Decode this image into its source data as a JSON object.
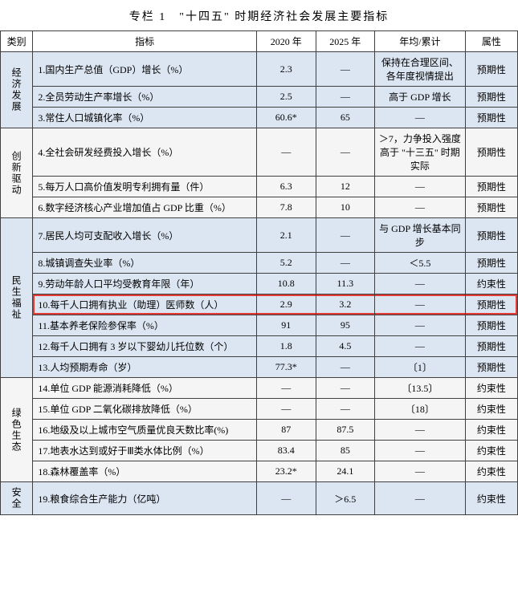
{
  "title": "专栏 1　\"十四五\" 时期经济社会发展主要指标",
  "columns": {
    "category": "类别",
    "indicator": "指标",
    "y2020": "2020 年",
    "y2025": "2025 年",
    "avg": "年均/累计",
    "attr": "属性"
  },
  "highlight_row_index": 9,
  "highlight_color": "#e53935",
  "categories": [
    {
      "name": "经济发展",
      "bg": "#dce6f2",
      "rows": [
        {
          "ind": "1.国内生产总值（GDP）增长（%）",
          "y0": "2.3",
          "y1": "—",
          "avg": "保持在合理区间、各年度视情提出",
          "attr": "预期性"
        },
        {
          "ind": "2.全员劳动生产率增长（%）",
          "y0": "2.5",
          "y1": "—",
          "avg": "高于 GDP 增长",
          "attr": "预期性"
        },
        {
          "ind": "3.常住人口城镇化率（%）",
          "y0": "60.6*",
          "y1": "65",
          "avg": "—",
          "attr": "预期性"
        }
      ]
    },
    {
      "name": "创新驱动",
      "bg": "#f5f5f5",
      "rows": [
        {
          "ind": "4.全社会研发经费投入增长（%）",
          "y0": "—",
          "y1": "—",
          "avg": "＞7，力争投入强度高于 \"十三五\" 时期实际",
          "attr": "预期性"
        },
        {
          "ind": "5.每万人口高价值发明专利拥有量（件）",
          "y0": "6.3",
          "y1": "12",
          "avg": "—",
          "attr": "预期性"
        },
        {
          "ind": "6.数字经济核心产业增加值占 GDP 比重（%）",
          "y0": "7.8",
          "y1": "10",
          "avg": "—",
          "attr": "预期性"
        }
      ]
    },
    {
      "name": "民生福祉",
      "bg": "#dce6f2",
      "rows": [
        {
          "ind": "7.居民人均可支配收入增长（%）",
          "y0": "2.1",
          "y1": "—",
          "avg": "与 GDP 增长基本同步",
          "attr": "预期性"
        },
        {
          "ind": "8.城镇调查失业率（%）",
          "y0": "5.2",
          "y1": "—",
          "avg": "＜5.5",
          "attr": "预期性"
        },
        {
          "ind": "9.劳动年龄人口平均受教育年限（年）",
          "y0": "10.8",
          "y1": "11.3",
          "avg": "—",
          "attr": "约束性"
        },
        {
          "ind": "10.每千人口拥有执业（助理）医师数（人）",
          "y0": "2.9",
          "y1": "3.2",
          "avg": "—",
          "attr": "预期性"
        },
        {
          "ind": "11.基本养老保险参保率（%）",
          "y0": "91",
          "y1": "95",
          "avg": "—",
          "attr": "预期性"
        },
        {
          "ind": "12.每千人口拥有 3 岁以下婴幼儿托位数（个）",
          "y0": "1.8",
          "y1": "4.5",
          "avg": "—",
          "attr": "预期性"
        },
        {
          "ind": "13.人均预期寿命（岁）",
          "y0": "77.3*",
          "y1": "—",
          "avg": "〔1〕",
          "attr": "预期性"
        }
      ]
    },
    {
      "name": "绿色生态",
      "bg": "#f5f5f5",
      "rows": [
        {
          "ind": "14.单位 GDP 能源消耗降低（%）",
          "y0": "—",
          "y1": "—",
          "avg": "〔13.5〕",
          "attr": "约束性"
        },
        {
          "ind": "15.单位 GDP 二氧化碳排放降低（%）",
          "y0": "—",
          "y1": "—",
          "avg": "〔18〕",
          "attr": "约束性"
        },
        {
          "ind": "16.地级及以上城市空气质量优良天数比率(%)",
          "y0": "87",
          "y1": "87.5",
          "avg": "—",
          "attr": "约束性"
        },
        {
          "ind": "17.地表水达到或好于Ⅲ类水体比例（%）",
          "y0": "83.4",
          "y1": "85",
          "avg": "—",
          "attr": "约束性"
        },
        {
          "ind": "18.森林覆盖率（%）",
          "y0": "23.2*",
          "y1": "24.1",
          "avg": "—",
          "attr": "约束性"
        }
      ]
    },
    {
      "name": "安全",
      "bg": "#dce6f2",
      "rows": [
        {
          "ind": "19.粮食综合生产能力（亿吨）",
          "y0": "—",
          "y1": "＞6.5",
          "avg": "—",
          "attr": "约束性"
        }
      ]
    }
  ]
}
